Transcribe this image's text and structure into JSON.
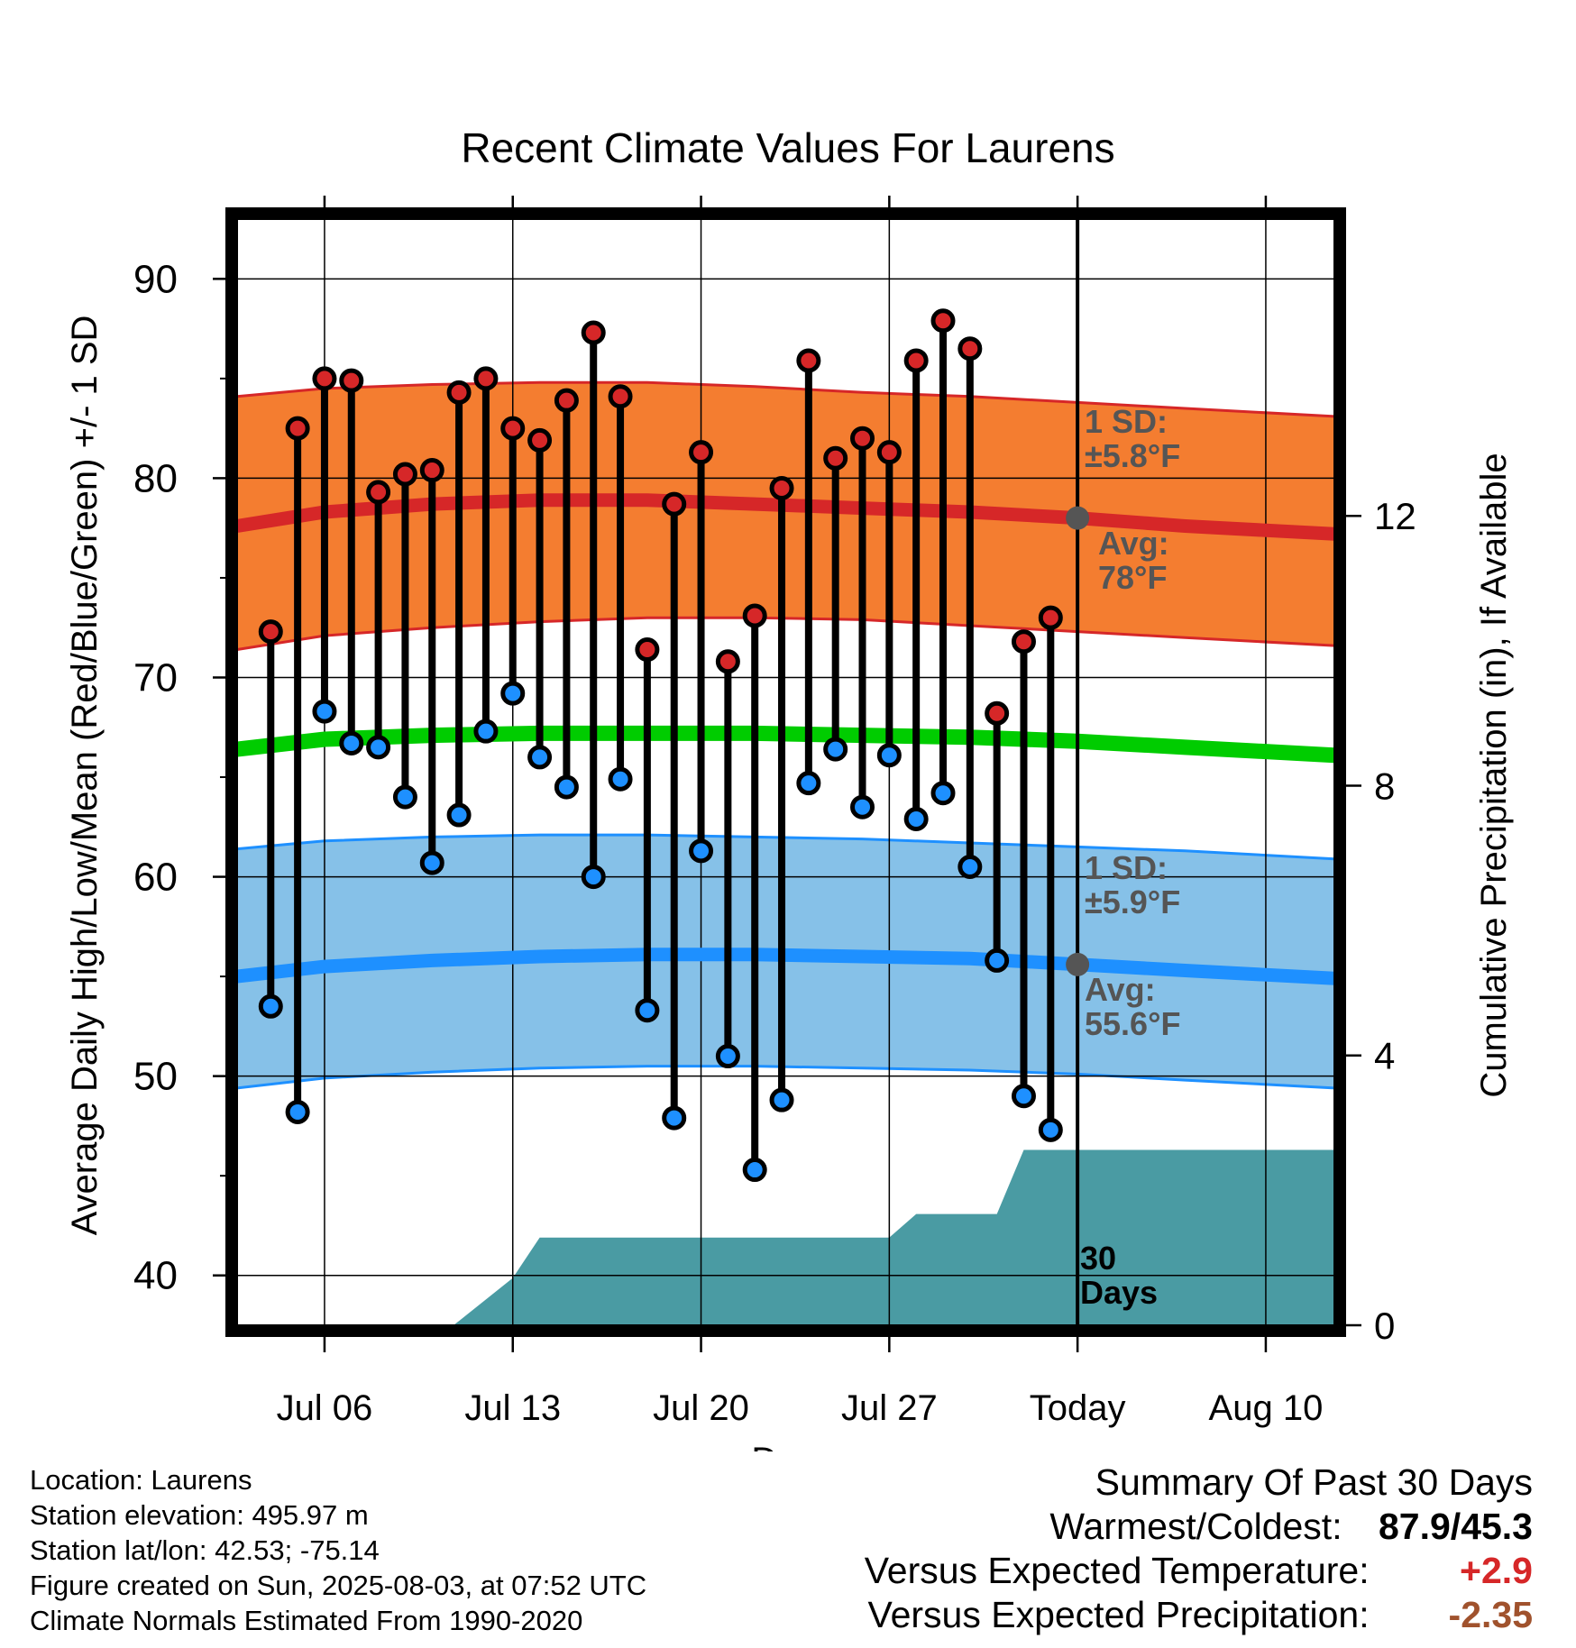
{
  "chart_data": {
    "type": "line",
    "title": "Recent Climate Values For Laurens",
    "xlabel": "Day",
    "ylabel": "Average Daily High/Low/Mean (Red/Blue/Green) +/- 1 SD",
    "ylabel_right": "Cumulative Precipitation (in), If Available",
    "ylim": [
      37.5,
      93
    ],
    "ylim_right": [
      0,
      16.4
    ],
    "yticks": [
      40,
      50,
      60,
      70,
      80,
      90
    ],
    "yticks_right": [
      0,
      4,
      8,
      12
    ],
    "x_ticks": [
      {
        "label": "Jul 06",
        "day": 6
      },
      {
        "label": "Jul 13",
        "day": 13
      },
      {
        "label": "Jul 20",
        "day": 20
      },
      {
        "label": "Jul 27",
        "day": 27
      },
      {
        "label": "Today",
        "day": 34
      },
      {
        "label": "Aug 10",
        "day": 41
      }
    ],
    "x_range_days": [
      2.75,
      43.55
    ],
    "today_day": 34,
    "grid": true,
    "daily_observations": {
      "days": [
        4,
        5,
        6,
        7,
        8,
        9,
        10,
        11,
        12,
        13,
        14,
        15,
        16,
        17,
        18,
        19,
        20,
        21,
        22,
        23,
        24,
        25,
        26,
        27,
        28,
        29,
        30,
        31,
        32,
        33
      ],
      "highs": [
        72.3,
        82.5,
        85.0,
        84.9,
        79.3,
        80.2,
        80.4,
        84.3,
        85.0,
        82.5,
        81.9,
        83.9,
        87.3,
        84.1,
        71.4,
        78.7,
        81.3,
        70.8,
        73.1,
        79.5,
        85.9,
        81.0,
        82.0,
        81.3,
        85.9,
        87.9,
        86.5,
        68.2,
        71.8,
        73.0
      ],
      "lows": [
        53.5,
        48.2,
        68.3,
        66.7,
        66.5,
        64.0,
        60.7,
        63.1,
        67.3,
        69.2,
        66.0,
        64.5,
        60.0,
        64.9,
        53.3,
        47.9,
        61.3,
        51.0,
        45.3,
        48.8,
        64.7,
        66.4,
        63.5,
        66.1,
        62.9,
        64.2,
        60.5,
        55.8,
        49.0,
        47.3
      ]
    },
    "normals": {
      "days": [
        2.75,
        6,
        10,
        14,
        18,
        22,
        26,
        30,
        34,
        38,
        43.55
      ],
      "high_avg": [
        77.6,
        78.3,
        78.7,
        78.9,
        78.9,
        78.7,
        78.5,
        78.3,
        78.0,
        77.6,
        77.2
      ],
      "high_sd_upper": [
        84.1,
        84.5,
        84.7,
        84.8,
        84.8,
        84.6,
        84.3,
        84.1,
        83.8,
        83.5,
        83.1
      ],
      "high_sd_lower": [
        71.4,
        72.1,
        72.5,
        72.8,
        73.0,
        73.0,
        72.9,
        72.6,
        72.3,
        72.0,
        71.6
      ],
      "mean_avg": [
        66.4,
        66.9,
        67.1,
        67.2,
        67.2,
        67.2,
        67.1,
        67.0,
        66.8,
        66.5,
        66.1
      ],
      "low_avg": [
        55.0,
        55.5,
        55.8,
        56.0,
        56.1,
        56.1,
        56.0,
        55.9,
        55.6,
        55.3,
        54.9
      ],
      "low_sd_upper": [
        61.4,
        61.8,
        62.0,
        62.1,
        62.1,
        62.0,
        61.9,
        61.7,
        61.5,
        61.3,
        60.9
      ],
      "low_sd_lower": [
        49.4,
        49.9,
        50.2,
        50.4,
        50.5,
        50.5,
        50.4,
        50.3,
        50.1,
        49.8,
        49.4
      ]
    },
    "precipitation_cumulative": {
      "days": [
        2.75,
        10.8,
        13.0,
        14.0,
        27.0,
        28.0,
        31.0,
        32.0,
        43.55
      ],
      "values": [
        0,
        0,
        0.7,
        1.3,
        1.3,
        1.65,
        1.65,
        2.6,
        2.6
      ]
    },
    "today_markers": {
      "high_avg": 78.0,
      "low_avg": 55.6
    },
    "annotations": {
      "high_sd": "1 SD:\n±5.8°F",
      "high_avg": "Avg:\n78°F",
      "low_sd": "1 SD:\n±5.9°F",
      "low_avg": "Avg:\n55.6°F",
      "precip": "30\nDays"
    },
    "colors": {
      "high_band": "#f47d30",
      "high_line": "#d62728",
      "mean_line": "#00cc00",
      "low_band": "#86c1e8",
      "low_line": "#1e90ff",
      "high_dot": "#d62728",
      "low_dot": "#1e90ff",
      "precip_fill": "#4a9ba3",
      "annotation_text": "#555555"
    }
  },
  "info": {
    "location": "Location: Laurens",
    "elevation": "Station elevation: 495.97 m",
    "latlon": "Station lat/lon: 42.53; -75.14",
    "created": "Figure created on Sun, 2025-08-03, at 07:52 UTC",
    "normals": "Climate Normals Estimated From 1990-2020"
  },
  "summary": {
    "title": "Summary Of Past 30 Days",
    "warm_cold_label": "Warmest/Coldest:",
    "warm_cold_value": "87.9/45.3",
    "temp_label": "Versus Expected Temperature:",
    "temp_value": "+2.9",
    "temp_color": "#d62728",
    "precip_label": "Versus Expected Precipitation:",
    "precip_value": "-2.35",
    "precip_color": "#a0522d"
  }
}
